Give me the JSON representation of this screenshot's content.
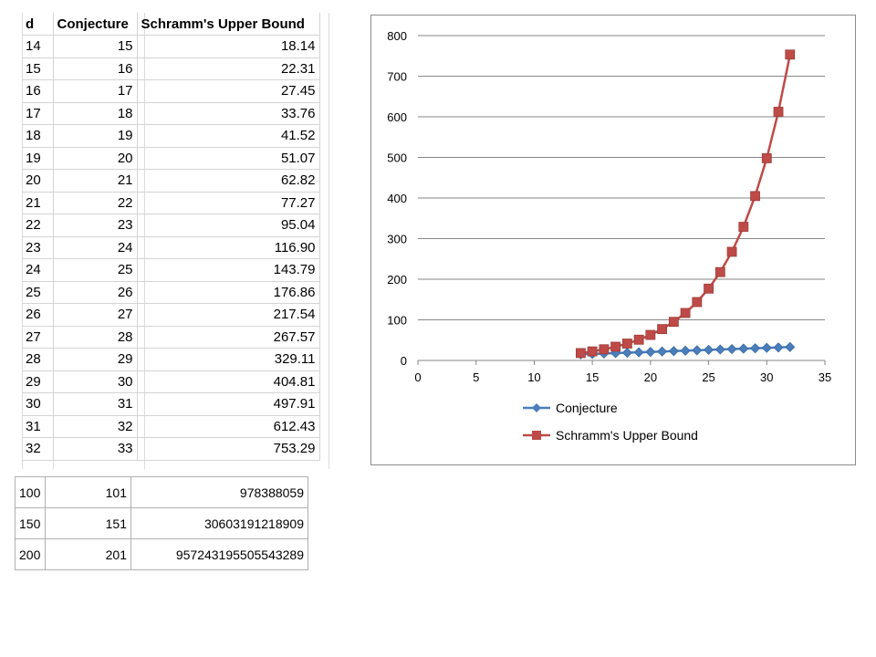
{
  "table": {
    "headers": [
      "d",
      "Conjecture",
      "Schramm's Upper Bound"
    ],
    "rows": [
      [
        "14",
        "15",
        "18.14"
      ],
      [
        "15",
        "16",
        "22.31"
      ],
      [
        "16",
        "17",
        "27.45"
      ],
      [
        "17",
        "18",
        "33.76"
      ],
      [
        "18",
        "19",
        "41.52"
      ],
      [
        "19",
        "20",
        "51.07"
      ],
      [
        "20",
        "21",
        "62.82"
      ],
      [
        "21",
        "22",
        "77.27"
      ],
      [
        "22",
        "23",
        "95.04"
      ],
      [
        "23",
        "24",
        "116.90"
      ],
      [
        "24",
        "25",
        "143.79"
      ],
      [
        "25",
        "26",
        "176.86"
      ],
      [
        "26",
        "27",
        "217.54"
      ],
      [
        "27",
        "28",
        "267.57"
      ],
      [
        "28",
        "29",
        "329.11"
      ],
      [
        "29",
        "30",
        "404.81"
      ],
      [
        "30",
        "31",
        "497.91"
      ],
      [
        "31",
        "32",
        "612.43"
      ],
      [
        "32",
        "33",
        "753.29"
      ]
    ]
  },
  "big_table": {
    "rows": [
      [
        "100",
        "101",
        "978388059"
      ],
      [
        "150",
        "151",
        "30603191218909"
      ],
      [
        "200",
        "201",
        "957243195505543289"
      ]
    ]
  },
  "chart_data": {
    "type": "line",
    "title": "",
    "xlabel": "",
    "ylabel": "",
    "xlim": [
      0,
      35
    ],
    "ylim": [
      0,
      800
    ],
    "xticks": [
      0,
      5,
      10,
      15,
      20,
      25,
      30,
      35
    ],
    "yticks": [
      0,
      100,
      200,
      300,
      400,
      500,
      600,
      700,
      800
    ],
    "grid": "horizontal",
    "legend_position": "bottom",
    "x": [
      14,
      15,
      16,
      17,
      18,
      19,
      20,
      21,
      22,
      23,
      24,
      25,
      26,
      27,
      28,
      29,
      30,
      31,
      32
    ],
    "series": [
      {
        "name": "Conjecture",
        "color": "#4a7ebb",
        "marker": "diamond",
        "values": [
          15,
          16,
          17,
          18,
          19,
          20,
          21,
          22,
          23,
          24,
          25,
          26,
          27,
          28,
          29,
          30,
          31,
          32,
          33
        ]
      },
      {
        "name": "Schramm's Upper Bound",
        "color": "#be4b48",
        "marker": "square",
        "values": [
          18.14,
          22.31,
          27.45,
          33.76,
          41.52,
          51.07,
          62.82,
          77.27,
          95.04,
          116.9,
          143.79,
          176.86,
          217.54,
          267.57,
          329.11,
          404.81,
          497.91,
          612.43,
          753.29
        ]
      }
    ]
  }
}
